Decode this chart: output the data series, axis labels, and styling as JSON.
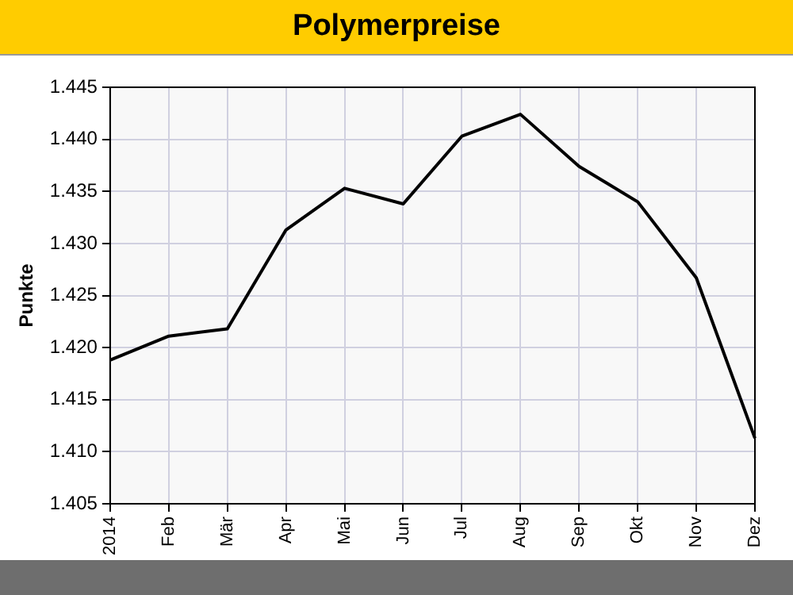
{
  "chart_data": {
    "type": "line",
    "title": "Polymerpreise",
    "ylabel": "Punkte",
    "categories": [
      "2014",
      "Feb",
      "Mär",
      "Apr",
      "Mai",
      "Jun",
      "Jul",
      "Aug",
      "Sep",
      "Okt",
      "Nov",
      "Dez"
    ],
    "series": [
      {
        "color": "#000000",
        "values": [
          1418.8,
          1421.1,
          1421.8,
          1431.3,
          1435.3,
          1433.8,
          1440.3,
          1442.4,
          1437.4,
          1434.0,
          1426.7,
          1411.3
        ]
      }
    ],
    "ylim": [
      1405,
      1445
    ],
    "yticks": [
      {
        "value": 1405,
        "label": "1.405"
      },
      {
        "value": 1410,
        "label": "1.410"
      },
      {
        "value": 1415,
        "label": "1.415"
      },
      {
        "value": 1420,
        "label": "1.420"
      },
      {
        "value": 1425,
        "label": "1.425"
      },
      {
        "value": 1430,
        "label": "1.430"
      },
      {
        "value": 1435,
        "label": "1.435"
      },
      {
        "value": 1440,
        "label": "1.440"
      },
      {
        "value": 1445,
        "label": "1.445"
      }
    ],
    "grid": true,
    "marker": "none",
    "line_style": "solid"
  }
}
